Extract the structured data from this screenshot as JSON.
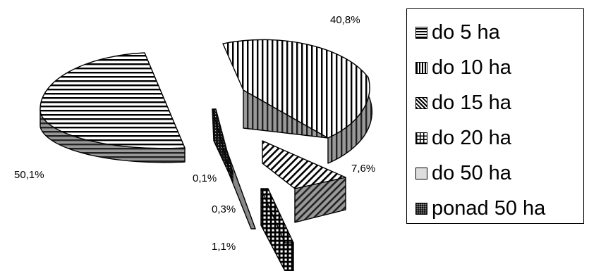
{
  "chart_data": {
    "type": "pie",
    "exploded_3d": true,
    "series": [
      {
        "name": "do 5 ha",
        "value": 50.1,
        "label": "50,1%",
        "pattern": "horizontal-stripes"
      },
      {
        "name": "do 10 ha",
        "value": 40.8,
        "label": "40,8%",
        "pattern": "vertical-stripes"
      },
      {
        "name": "do 15 ha",
        "value": 7.6,
        "label": "7,6%",
        "pattern": "diagonal-stripes"
      },
      {
        "name": "do 20 ha",
        "value": 1.1,
        "label": "1,1%",
        "pattern": "grid"
      },
      {
        "name": "do 50 ha",
        "value": 0.3,
        "label": "0,3%",
        "pattern": "solid-gray"
      },
      {
        "name": "ponad 50 ha",
        "value": 0.1,
        "label": "0,1%",
        "pattern": "dark-dotted"
      }
    ],
    "legend_position": "right"
  }
}
